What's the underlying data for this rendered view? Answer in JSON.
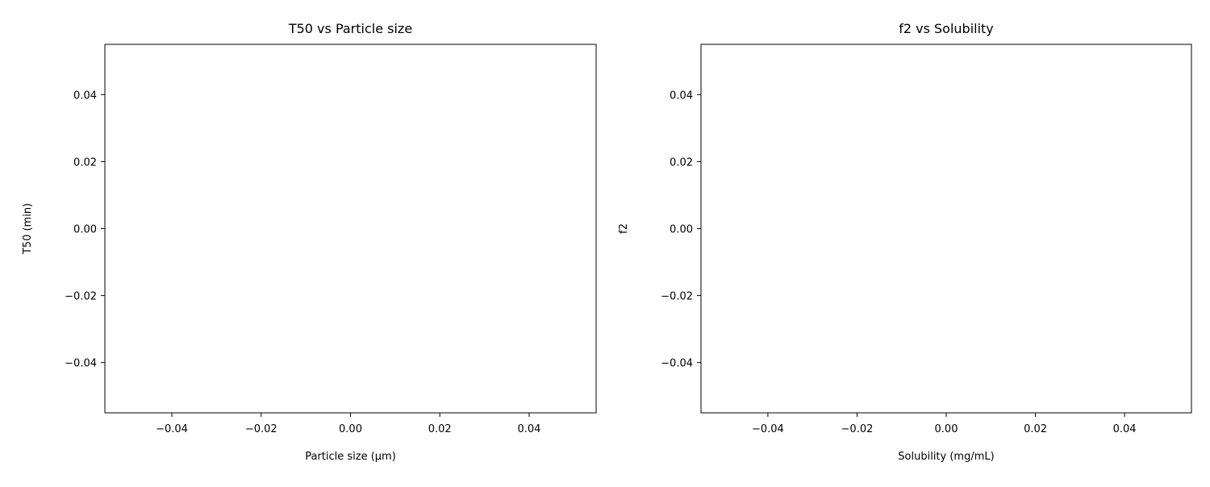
{
  "chart_data": [
    {
      "type": "scatter",
      "title": "T50 vs Particle size",
      "xlabel": "Particle size (µm)",
      "ylabel": "T50 (min)",
      "xlim": [
        -0.055,
        0.055
      ],
      "ylim": [
        -0.055,
        0.055
      ],
      "xticks": [
        -0.04,
        -0.02,
        0.0,
        0.02,
        0.04
      ],
      "xtick_labels": [
        "−0.04",
        "−0.02",
        "0.00",
        "0.02",
        "0.04"
      ],
      "yticks": [
        -0.04,
        -0.02,
        0.0,
        0.02,
        0.04
      ],
      "ytick_labels": [
        "−0.04",
        "−0.02",
        "0.00",
        "0.02",
        "0.04"
      ],
      "grid": false,
      "series": [
        {
          "x": [],
          "y": []
        }
      ]
    },
    {
      "type": "scatter",
      "title": "f2 vs Solubility",
      "xlabel": "Solubility (mg/mL)",
      "ylabel": "f2",
      "xlim": [
        -0.055,
        0.055
      ],
      "ylim": [
        -0.055,
        0.055
      ],
      "xticks": [
        -0.04,
        -0.02,
        0.0,
        0.02,
        0.04
      ],
      "xtick_labels": [
        "−0.04",
        "−0.02",
        "0.00",
        "0.02",
        "0.04"
      ],
      "yticks": [
        -0.04,
        -0.02,
        0.0,
        0.02,
        0.04
      ],
      "ytick_labels": [
        "−0.04",
        "−0.02",
        "0.00",
        "0.02",
        "0.04"
      ],
      "grid": false,
      "series": [
        {
          "x": [],
          "y": []
        }
      ]
    }
  ]
}
